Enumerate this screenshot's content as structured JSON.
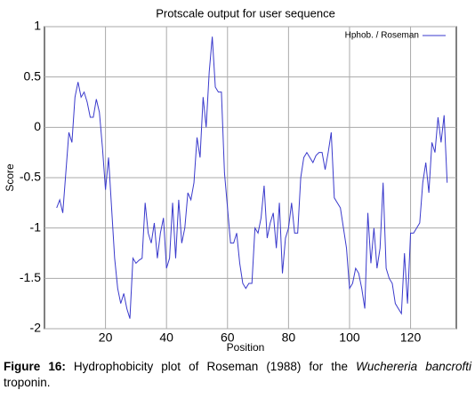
{
  "chart_data": {
    "type": "line",
    "title": "Protscale output for  user  sequence",
    "xlabel": "Position",
    "ylabel": "Score",
    "x": [
      4,
      5,
      6,
      7,
      8,
      9,
      10,
      11,
      12,
      13,
      14,
      15,
      16,
      17,
      18,
      19,
      20,
      21,
      22,
      23,
      24,
      25,
      26,
      27,
      28,
      29,
      30,
      31,
      32,
      33,
      34,
      35,
      36,
      37,
      38,
      39,
      40,
      41,
      42,
      43,
      44,
      45,
      46,
      47,
      48,
      49,
      50,
      51,
      52,
      53,
      54,
      55,
      56,
      57,
      58,
      59,
      60,
      61,
      62,
      63,
      64,
      65,
      66,
      67,
      68,
      69,
      70,
      71,
      72,
      73,
      74,
      75,
      76,
      77,
      78,
      79,
      80,
      81,
      82,
      83,
      84,
      85,
      86,
      87,
      88,
      89,
      90,
      91,
      92,
      93,
      94,
      95,
      96,
      97,
      98,
      99,
      100,
      101,
      102,
      103,
      104,
      105,
      106,
      107,
      108,
      109,
      110,
      111,
      112,
      113,
      114,
      115,
      116,
      117,
      118,
      119,
      120,
      121,
      122,
      123,
      124,
      125,
      126,
      127,
      128,
      129,
      130,
      131,
      132
    ],
    "series": [
      {
        "name": "Hphob. / Roseman",
        "color": "#3a3acc",
        "values": [
          -0.8,
          -0.72,
          -0.85,
          -0.45,
          -0.05,
          -0.15,
          0.3,
          0.45,
          0.3,
          0.35,
          0.25,
          0.1,
          0.1,
          0.28,
          0.15,
          -0.2,
          -0.62,
          -0.3,
          -0.8,
          -1.3,
          -1.6,
          -1.75,
          -1.65,
          -1.8,
          -1.9,
          -1.3,
          -1.35,
          -1.32,
          -1.3,
          -0.75,
          -1.05,
          -1.15,
          -0.95,
          -1.3,
          -1.05,
          -0.9,
          -1.4,
          -1.3,
          -0.75,
          -1.3,
          -0.72,
          -1.15,
          -1.0,
          -0.65,
          -0.72,
          -0.55,
          -0.1,
          -0.3,
          0.3,
          0.0,
          0.55,
          0.9,
          0.4,
          0.35,
          0.35,
          -0.45,
          -0.8,
          -1.15,
          -1.15,
          -1.05,
          -1.35,
          -1.55,
          -1.6,
          -1.55,
          -1.55,
          -1.0,
          -1.05,
          -0.9,
          -0.58,
          -1.1,
          -0.95,
          -0.85,
          -1.2,
          -0.75,
          -1.45,
          -1.1,
          -1.0,
          -0.75,
          -1.05,
          -1.05,
          -0.5,
          -0.3,
          -0.25,
          -0.3,
          -0.35,
          -0.28,
          -0.25,
          -0.25,
          -0.42,
          -0.25,
          -0.05,
          -0.7,
          -0.75,
          -0.8,
          -1.0,
          -1.2,
          -1.6,
          -1.55,
          -1.4,
          -1.45,
          -1.6,
          -1.8,
          -0.85,
          -1.35,
          -1.0,
          -1.4,
          -1.2,
          -0.55,
          -1.4,
          -1.5,
          -1.55,
          -1.75,
          -1.8,
          -1.85,
          -1.25,
          -1.75,
          -1.05,
          -1.05,
          -1.0,
          -0.95,
          -0.55,
          -0.35,
          -0.65,
          -0.15,
          -0.25,
          0.1,
          -0.15,
          0.12,
          -0.55
        ]
      }
    ],
    "xlim": [
      0,
      135
    ],
    "ylim": [
      -2,
      1
    ],
    "xticks": [
      20,
      40,
      60,
      80,
      100,
      120
    ],
    "yticks": [
      -2,
      -1.5,
      -1,
      -0.5,
      0,
      0.5,
      1
    ],
    "grid": true,
    "legend": "top-right"
  },
  "caption": [
    "Figure 16:",
    "Hydrophobicity plot of Roseman (1988) for the",
    "Wuchereria bancrofti",
    "troponin."
  ]
}
